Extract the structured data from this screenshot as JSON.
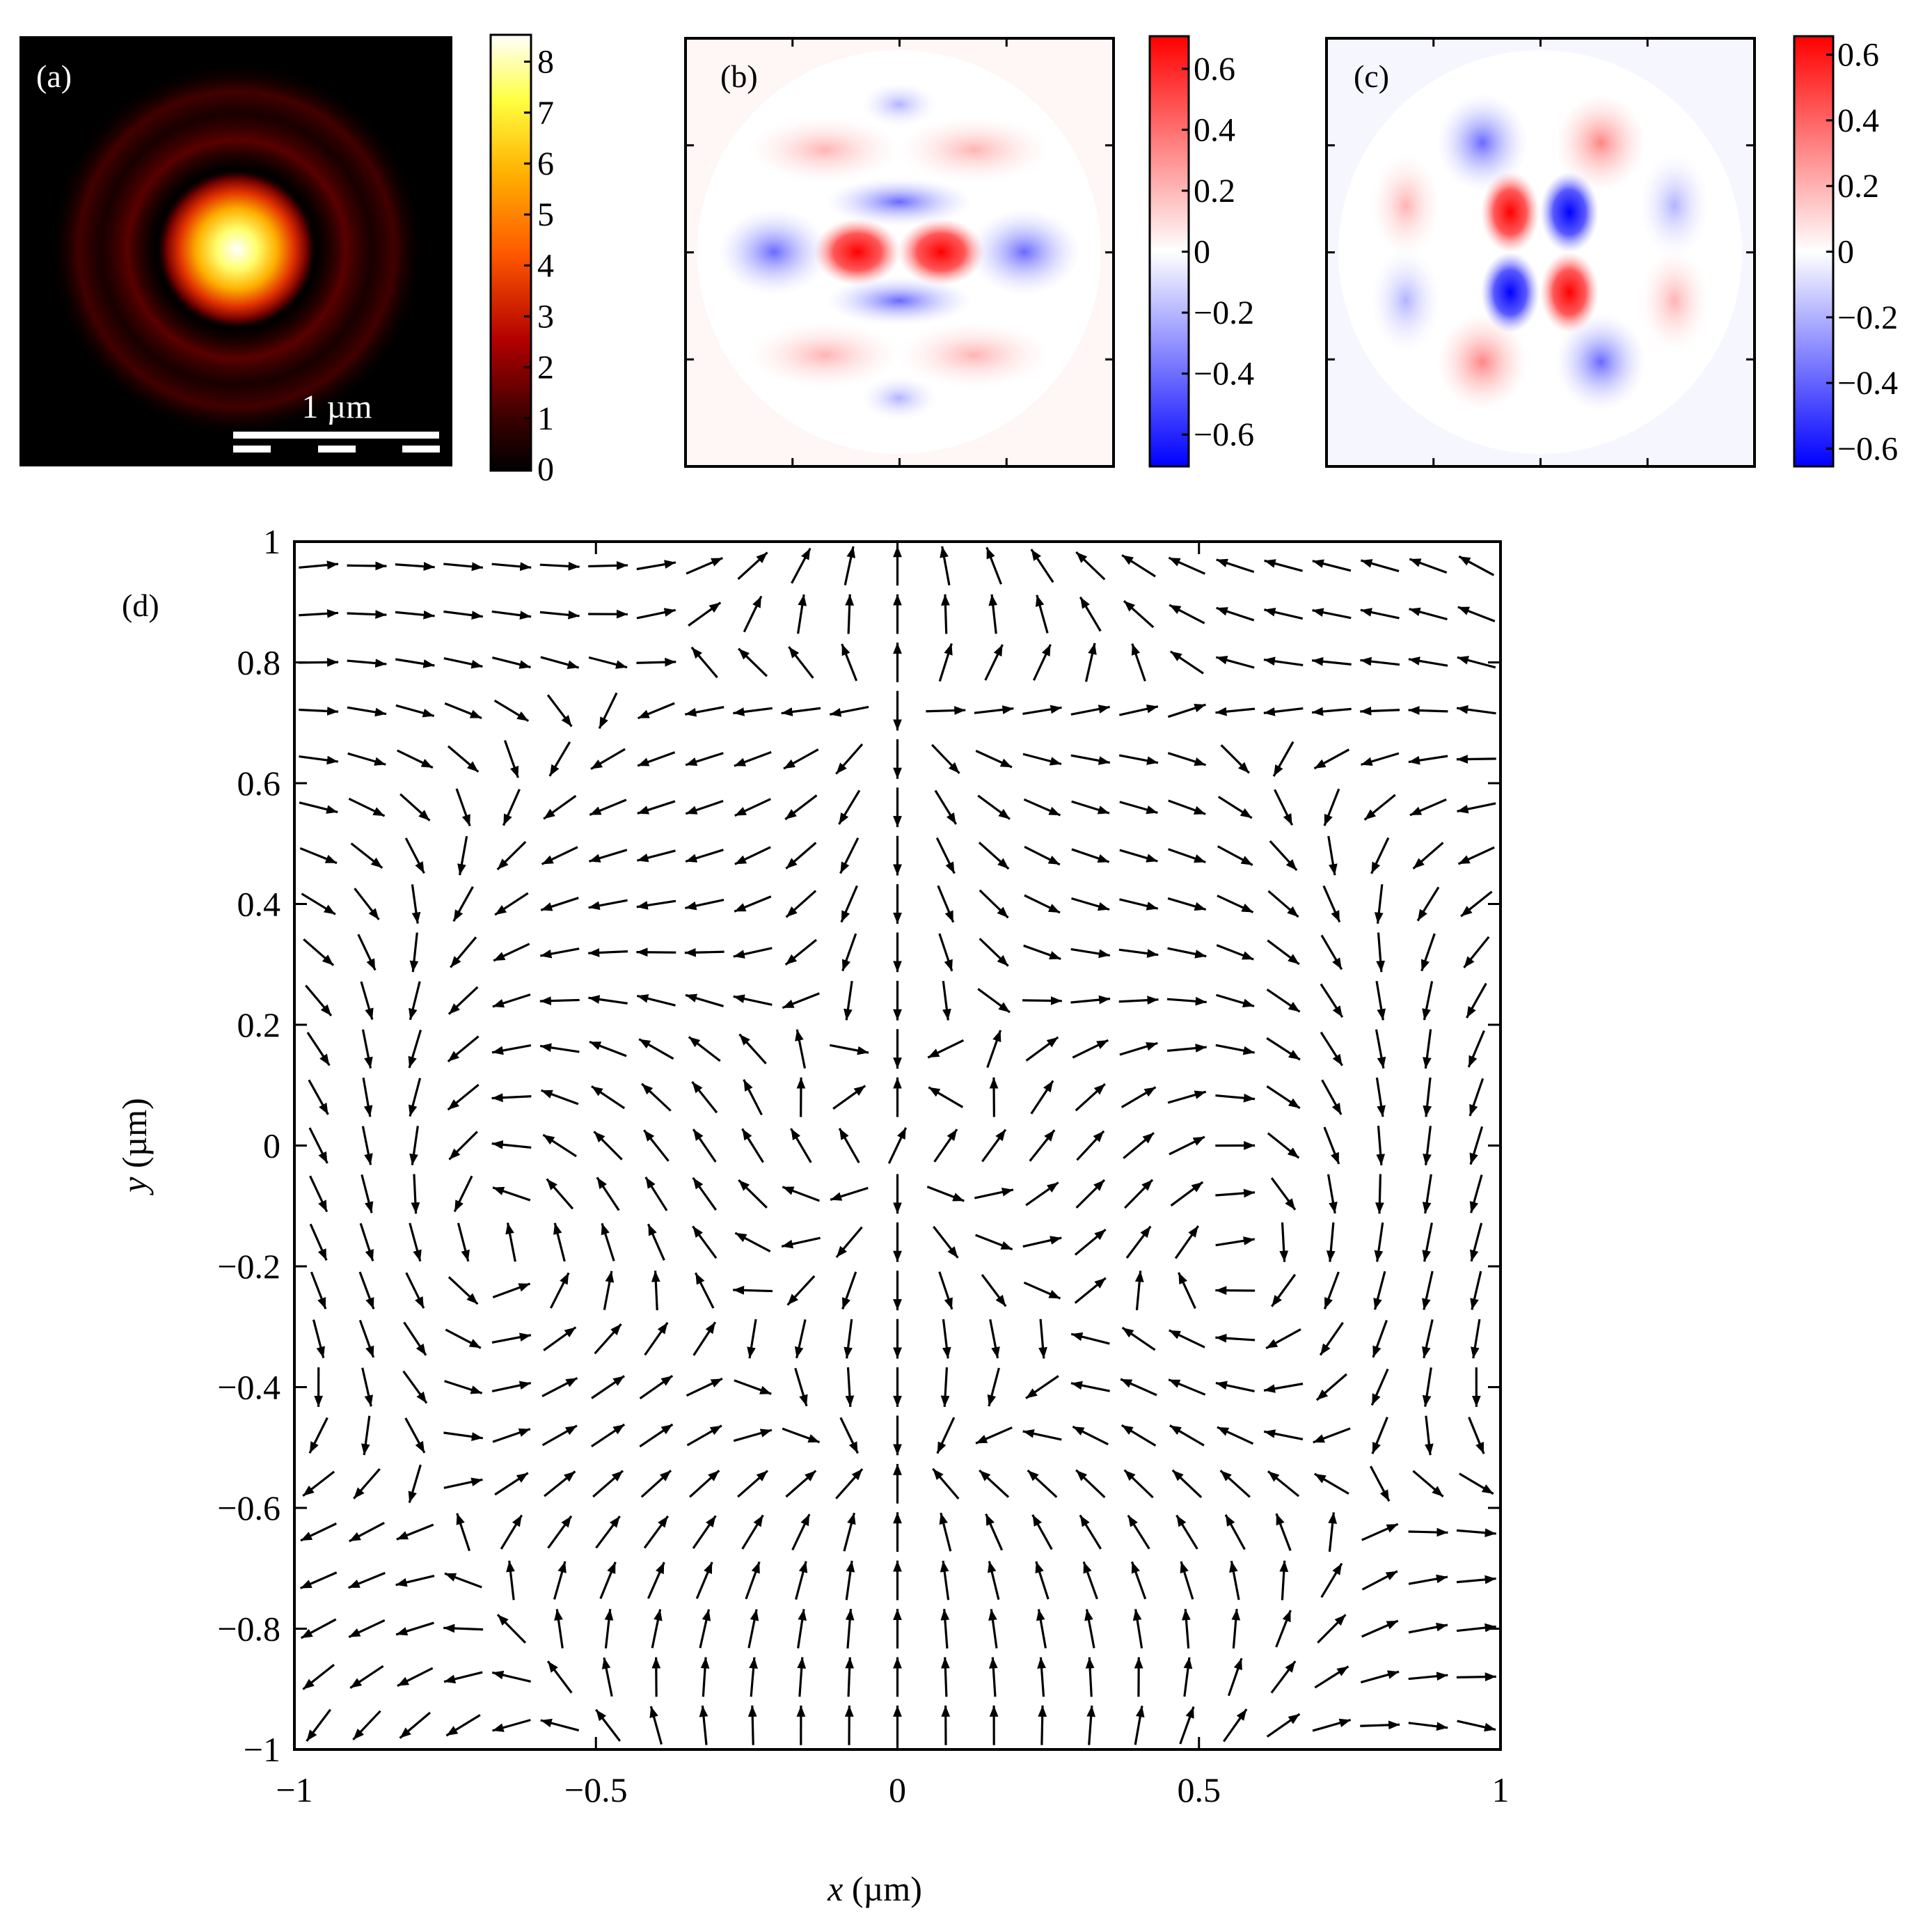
{
  "panels": {
    "a": {
      "label": "(a)",
      "scalebar_label": "1 µm",
      "colorbar_ticks": [
        "8",
        "7",
        "6",
        "5",
        "4",
        "3",
        "2",
        "1",
        "0"
      ],
      "colormap": [
        "#000000",
        "#5a0000",
        "#c80000",
        "#ff6a00",
        "#ffcc00",
        "#ffff66",
        "#ffffff"
      ]
    },
    "b": {
      "label": "(b)",
      "colorbar_ticks": [
        "0.6",
        "0.4",
        "0.2",
        "0",
        "−0.2",
        "−0.4",
        "−0.6"
      ],
      "colormap": [
        "#0000ff",
        "#ffffff",
        "#ff0000"
      ]
    },
    "c": {
      "label": "(c)",
      "colorbar_ticks": [
        "0.6",
        "0.4",
        "0.2",
        "0",
        "−0.2",
        "−0.4",
        "−0.6"
      ],
      "colormap": [
        "#0000ff",
        "#ffffff",
        "#ff0000"
      ]
    }
  },
  "chart_data": [
    {
      "id": "a",
      "type": "heatmap",
      "label": "(a)",
      "colorbar_range": [
        0,
        8.5
      ],
      "colorbar_ticks": [
        0,
        1,
        2,
        3,
        4,
        5,
        6,
        7,
        8
      ],
      "scalebar": "1 µm",
      "peak_value": 8.5
    },
    {
      "id": "b",
      "type": "heatmap",
      "label": "(b)",
      "colorbar_range": [
        -0.7,
        0.7
      ],
      "colorbar_ticks": [
        -0.6,
        -0.4,
        -0.2,
        0,
        0.2,
        0.4,
        0.6
      ]
    },
    {
      "id": "c",
      "type": "heatmap",
      "label": "(c)",
      "colorbar_range": [
        -0.65,
        0.65
      ],
      "colorbar_ticks": [
        -0.6,
        -0.4,
        -0.2,
        0,
        0.2,
        0.4,
        0.6
      ]
    },
    {
      "id": "d",
      "type": "quiver",
      "label": "(d)",
      "xlabel_var": "x",
      "xlabel_unit": " (µm)",
      "ylabel_var": "y",
      "ylabel_unit": " (µm)",
      "xlim": [
        -1,
        1
      ],
      "ylim": [
        -1,
        1
      ],
      "xticks": [
        -1,
        -0.5,
        0,
        0.5,
        1
      ],
      "xtick_labels": [
        "−1",
        "−0.5",
        "0",
        "0.5",
        "1"
      ],
      "yticks": [
        1,
        0.8,
        0.6,
        0.4,
        0.2,
        0,
        -0.2,
        -0.4,
        -0.6,
        -0.8,
        -1
      ],
      "ytick_labels": [
        "1",
        "0.8",
        "0.6",
        "0.4",
        "0.2",
        "0",
        "−0.2",
        "−0.4",
        "−0.6",
        "−0.8",
        "−1"
      ],
      "grid": false,
      "arrow_color": "#000000",
      "grid_points_per_axis": 25
    }
  ]
}
